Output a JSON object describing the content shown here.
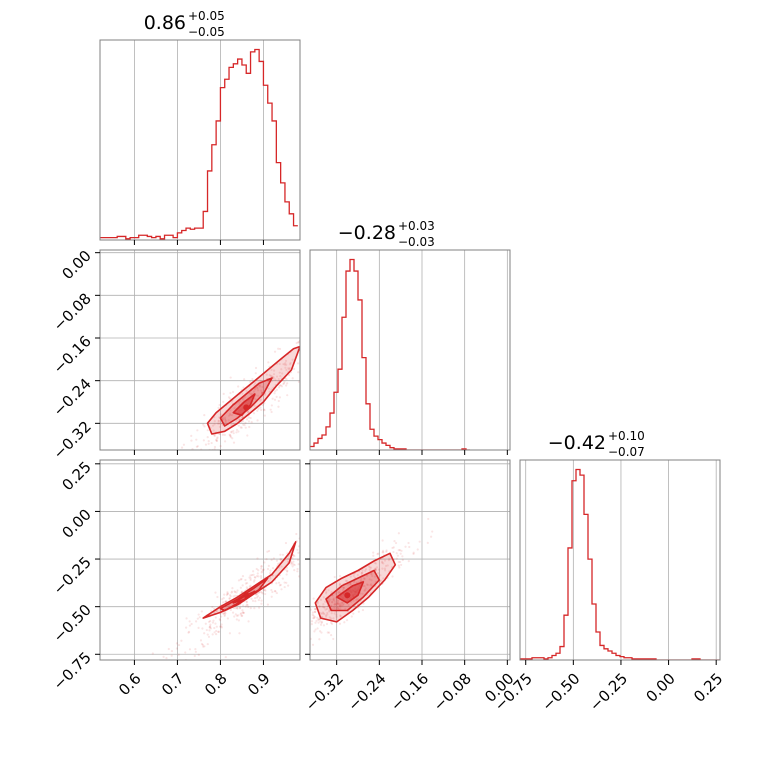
{
  "figure": {
    "type": "corner-plot",
    "accent_color": "#d62728",
    "grid": true
  },
  "chart_data": [
    {
      "type": "histogram",
      "panel": "row1-col1",
      "parameter_index": 0,
      "title": {
        "median": "0.86",
        "upper": "+0.05",
        "lower": "−0.05"
      },
      "xlim": [
        0.52,
        0.985
      ],
      "x_ticks": [
        0.6,
        0.7,
        0.8,
        0.9
      ],
      "x_tick_labels": [],
      "bin_edges_start": 0.52,
      "bin_width": 0.01,
      "counts": [
        2,
        2,
        2,
        2,
        3,
        3,
        1,
        2,
        2,
        4,
        4,
        3,
        2,
        3,
        1,
        4,
        4,
        2,
        6,
        8,
        10,
        9,
        10,
        10,
        24,
        58,
        80,
        100,
        128,
        135,
        145,
        148,
        152,
        147,
        140,
        158,
        160,
        150,
        130,
        115,
        100,
        65,
        48,
        32,
        22,
        12
      ]
    },
    {
      "type": "histogram",
      "panel": "row2-col2",
      "parameter_index": 1,
      "title": {
        "median": "−0.28",
        "upper": "+0.03",
        "lower": "−0.03"
      },
      "xlim": [
        -0.37,
        0.005
      ],
      "x_ticks": [
        -0.32,
        -0.24,
        -0.16,
        -0.08,
        0.0
      ],
      "x_tick_labels": [],
      "bin_edges_start": -0.37,
      "bin_width": 0.0075,
      "counts": [
        3,
        6,
        10,
        13,
        20,
        32,
        50,
        70,
        115,
        155,
        165,
        155,
        130,
        80,
        40,
        18,
        12,
        9,
        6,
        4,
        2,
        1,
        1,
        1,
        0,
        0,
        0,
        0,
        0,
        0,
        0,
        0,
        0,
        0,
        0,
        0,
        0,
        0,
        1,
        0
      ]
    },
    {
      "type": "histogram",
      "panel": "row3-col3",
      "parameter_index": 2,
      "title": {
        "median": "−0.42",
        "upper": "+0.10",
        "lower": "−0.07"
      },
      "xlim": [
        -0.78,
        0.27
      ],
      "x_ticks": [
        -0.75,
        -0.5,
        -0.25,
        0.0,
        0.25
      ],
      "x_tick_labels": [
        "−0.75",
        "−0.50",
        "−0.25",
        "0.00",
        "0.25"
      ],
      "bin_edges_start": -0.78,
      "bin_width": 0.021,
      "counts": [
        1,
        1,
        1,
        2,
        2,
        2,
        1,
        2,
        4,
        6,
        12,
        40,
        100,
        160,
        170,
        165,
        130,
        90,
        50,
        25,
        13,
        10,
        8,
        6,
        4,
        3,
        2,
        2,
        1,
        1,
        1,
        1,
        1,
        1,
        0,
        0,
        0,
        0,
        0,
        0,
        0,
        0,
        0,
        1,
        1,
        0,
        0,
        0,
        0,
        0
      ]
    },
    {
      "type": "scatter",
      "panel": "row2-col1",
      "x_parameter": 0,
      "y_parameter": 1,
      "xlim": [
        0.52,
        0.985
      ],
      "ylim": [
        -0.37,
        0.005
      ],
      "x_ticks": [
        0.6,
        0.7,
        0.8,
        0.9
      ],
      "x_tick_labels": [],
      "y_ticks": [
        0.0,
        -0.08,
        -0.16,
        -0.24,
        -0.32
      ],
      "y_tick_labels": [
        "0.00",
        "−0.08",
        "−0.16",
        "−0.24",
        "−0.32"
      ],
      "contours": [
        {
          "level": "outer",
          "points": [
            [
              0.77,
              -0.32
            ],
            [
              0.79,
              -0.3
            ],
            [
              0.82,
              -0.28
            ],
            [
              0.85,
              -0.26
            ],
            [
              0.88,
              -0.24
            ],
            [
              0.91,
              -0.22
            ],
            [
              0.94,
              -0.2
            ],
            [
              0.97,
              -0.18
            ],
            [
              0.985,
              -0.176
            ],
            [
              0.965,
              -0.22
            ],
            [
              0.93,
              -0.25
            ],
            [
              0.9,
              -0.28
            ],
            [
              0.87,
              -0.3
            ],
            [
              0.84,
              -0.32
            ],
            [
              0.81,
              -0.335
            ],
            [
              0.78,
              -0.34
            ],
            [
              0.77,
              -0.32
            ]
          ]
        },
        {
          "level": "middle",
          "points": [
            [
              0.8,
              -0.31
            ],
            [
              0.83,
              -0.285
            ],
            [
              0.86,
              -0.265
            ],
            [
              0.89,
              -0.245
            ],
            [
              0.92,
              -0.235
            ],
            [
              0.9,
              -0.265
            ],
            [
              0.87,
              -0.29
            ],
            [
              0.84,
              -0.31
            ],
            [
              0.81,
              -0.325
            ],
            [
              0.8,
              -0.31
            ]
          ]
        },
        {
          "level": "inner",
          "points": [
            [
              0.83,
              -0.3
            ],
            [
              0.855,
              -0.28
            ],
            [
              0.88,
              -0.265
            ],
            [
              0.87,
              -0.285
            ],
            [
              0.85,
              -0.305
            ],
            [
              0.83,
              -0.3
            ]
          ]
        }
      ],
      "centroid": [
        0.86,
        -0.29
      ]
    },
    {
      "type": "scatter",
      "panel": "row3-col1",
      "x_parameter": 0,
      "y_parameter": 2,
      "xlim": [
        0.52,
        0.985
      ],
      "ylim": [
        -0.78,
        0.27
      ],
      "x_ticks": [
        0.6,
        0.7,
        0.8,
        0.9
      ],
      "x_tick_labels": [
        "0.6",
        "0.7",
        "0.8",
        "0.9"
      ],
      "y_ticks": [
        0.25,
        0.0,
        -0.25,
        -0.5,
        -0.75
      ],
      "y_tick_labels": [
        "0.25",
        "0.00",
        "−0.25",
        "−0.50",
        "−0.75"
      ],
      "contours": [
        {
          "level": "outer",
          "points": [
            [
              0.76,
              -0.56
            ],
            [
              0.8,
              -0.5
            ],
            [
              0.84,
              -0.45
            ],
            [
              0.88,
              -0.39
            ],
            [
              0.92,
              -0.33
            ],
            [
              0.96,
              -0.22
            ],
            [
              0.975,
              -0.16
            ],
            [
              0.96,
              -0.27
            ],
            [
              0.92,
              -0.37
            ],
            [
              0.88,
              -0.43
            ],
            [
              0.84,
              -0.49
            ],
            [
              0.8,
              -0.53
            ],
            [
              0.76,
              -0.56
            ]
          ]
        },
        {
          "level": "middle",
          "points": [
            [
              0.8,
              -0.51
            ],
            [
              0.84,
              -0.46
            ],
            [
              0.88,
              -0.4
            ],
            [
              0.91,
              -0.35
            ],
            [
              0.89,
              -0.41
            ],
            [
              0.85,
              -0.47
            ],
            [
              0.81,
              -0.52
            ],
            [
              0.8,
              -0.51
            ]
          ]
        },
        {
          "level": "inner",
          "points": [
            [
              0.83,
              -0.48
            ],
            [
              0.86,
              -0.44
            ],
            [
              0.88,
              -0.42
            ],
            [
              0.86,
              -0.46
            ],
            [
              0.83,
              -0.48
            ]
          ]
        }
      ],
      "centroid": [
        0.86,
        -0.44
      ]
    },
    {
      "type": "scatter",
      "panel": "row3-col2",
      "x_parameter": 1,
      "y_parameter": 2,
      "xlim": [
        -0.37,
        0.005
      ],
      "ylim": [
        -0.78,
        0.27
      ],
      "x_ticks": [
        -0.32,
        -0.24,
        -0.16,
        -0.08,
        0.0
      ],
      "x_tick_labels": [
        "−0.32",
        "−0.24",
        "−0.16",
        "−0.08",
        "0.00"
      ],
      "y_ticks": [
        0.25,
        0.0,
        -0.25,
        -0.5,
        -0.75
      ],
      "y_tick_labels": [],
      "contours": [
        {
          "level": "outer",
          "points": [
            [
              -0.36,
              -0.48
            ],
            [
              -0.34,
              -0.4
            ],
            [
              -0.31,
              -0.35
            ],
            [
              -0.28,
              -0.31
            ],
            [
              -0.25,
              -0.26
            ],
            [
              -0.22,
              -0.22
            ],
            [
              -0.21,
              -0.28
            ],
            [
              -0.23,
              -0.36
            ],
            [
              -0.26,
              -0.45
            ],
            [
              -0.29,
              -0.52
            ],
            [
              -0.32,
              -0.58
            ],
            [
              -0.35,
              -0.56
            ],
            [
              -0.36,
              -0.48
            ]
          ]
        },
        {
          "level": "middle",
          "points": [
            [
              -0.34,
              -0.46
            ],
            [
              -0.31,
              -0.39
            ],
            [
              -0.28,
              -0.35
            ],
            [
              -0.25,
              -0.31
            ],
            [
              -0.24,
              -0.36
            ],
            [
              -0.27,
              -0.45
            ],
            [
              -0.3,
              -0.52
            ],
            [
              -0.33,
              -0.52
            ],
            [
              -0.34,
              -0.46
            ]
          ]
        },
        {
          "level": "inner",
          "points": [
            [
              -0.32,
              -0.45
            ],
            [
              -0.29,
              -0.39
            ],
            [
              -0.27,
              -0.37
            ],
            [
              -0.28,
              -0.44
            ],
            [
              -0.3,
              -0.48
            ],
            [
              -0.32,
              -0.45
            ]
          ]
        }
      ],
      "centroid": [
        -0.3,
        -0.44
      ]
    }
  ]
}
